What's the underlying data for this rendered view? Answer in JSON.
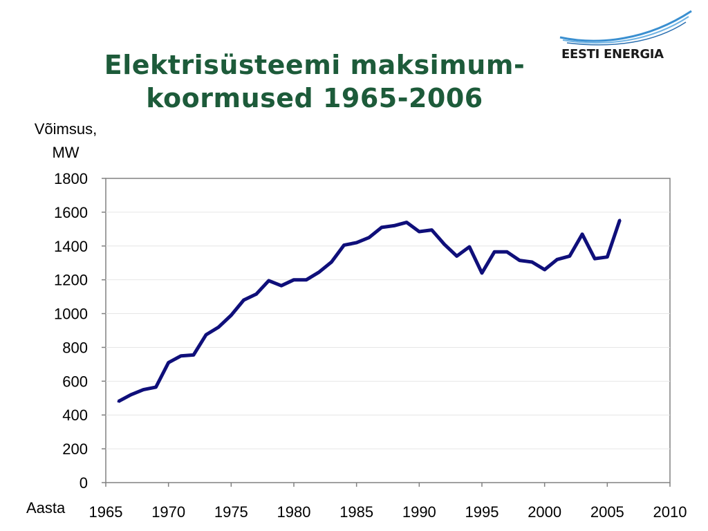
{
  "slide": {
    "title_line1": "Elektrisüsteemi maksimum-",
    "title_line2": "koormused 1965-2006",
    "logo_text": "EESTI ENERGIA",
    "title_color": "#1d5b3a",
    "logo_accent": "#3a8fd0"
  },
  "chart_data": {
    "type": "line",
    "title": "Elektrisüsteemi maksimum-koormused 1965-2006",
    "ylabel_line1": "Võimsus,",
    "ylabel_line2": "MW",
    "xlabel": "Aasta",
    "xlim": [
      1965,
      2010
    ],
    "ylim": [
      0,
      1800
    ],
    "xticks": [
      1965,
      1970,
      1975,
      1980,
      1985,
      1990,
      1995,
      2000,
      2005,
      2010
    ],
    "yticks": [
      0,
      200,
      400,
      600,
      800,
      1000,
      1200,
      1400,
      1600,
      1800
    ],
    "grid": "horizontal",
    "legend": "none",
    "line_color": "#0f0f7a",
    "series": [
      {
        "x": [
          1966,
          1967,
          1968,
          1969,
          1970,
          1971,
          1972,
          1973,
          1974,
          1975,
          1976,
          1977,
          1978,
          1979,
          1980,
          1981,
          1982,
          1983,
          1984,
          1985,
          1986,
          1987,
          1988,
          1989,
          1990,
          1991,
          1992,
          1993,
          1994,
          1995,
          1996,
          1997,
          1998,
          1999,
          2000,
          2001,
          2002,
          2003,
          2004,
          2005,
          2006
        ],
        "values": [
          480,
          520,
          550,
          565,
          710,
          750,
          755,
          875,
          920,
          990,
          1080,
          1115,
          1195,
          1165,
          1200,
          1200,
          1245,
          1305,
          1405,
          1420,
          1450,
          1510,
          1520,
          1540,
          1485,
          1495,
          1410,
          1340,
          1395,
          1240,
          1365,
          1365,
          1315,
          1305,
          1260,
          1320,
          1340,
          1470,
          1325,
          1335,
          1555
        ]
      }
    ]
  }
}
